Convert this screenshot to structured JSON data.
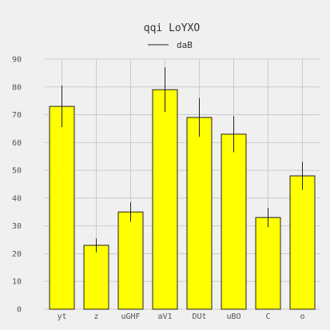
{
  "chart_data": {
    "type": "bar",
    "title": "qqi LoYXO",
    "xlabel": "",
    "ylabel": "",
    "categories": [
      "yt",
      "z",
      "uGHF",
      "aV1",
      "DUt",
      "uBO",
      "C",
      "o"
    ],
    "series": [
      {
        "name": "daB",
        "values": [
          73,
          23,
          35,
          79,
          69,
          63,
          33,
          48
        ],
        "errors": [
          7.5,
          2.5,
          3.5,
          8,
          7,
          6.5,
          3.5,
          5
        ]
      }
    ],
    "ylim": [
      0,
      90
    ],
    "yticks": [
      0,
      10,
      20,
      30,
      40,
      50,
      60,
      70,
      80,
      90
    ],
    "grid": true,
    "legend_position": "top-center",
    "colors": {
      "bar_fill": "#ffff00",
      "bar_stroke": "#222222",
      "error_bar": "#222222",
      "grid": "#cbcbcb",
      "background": "#f0f0f0"
    }
  }
}
